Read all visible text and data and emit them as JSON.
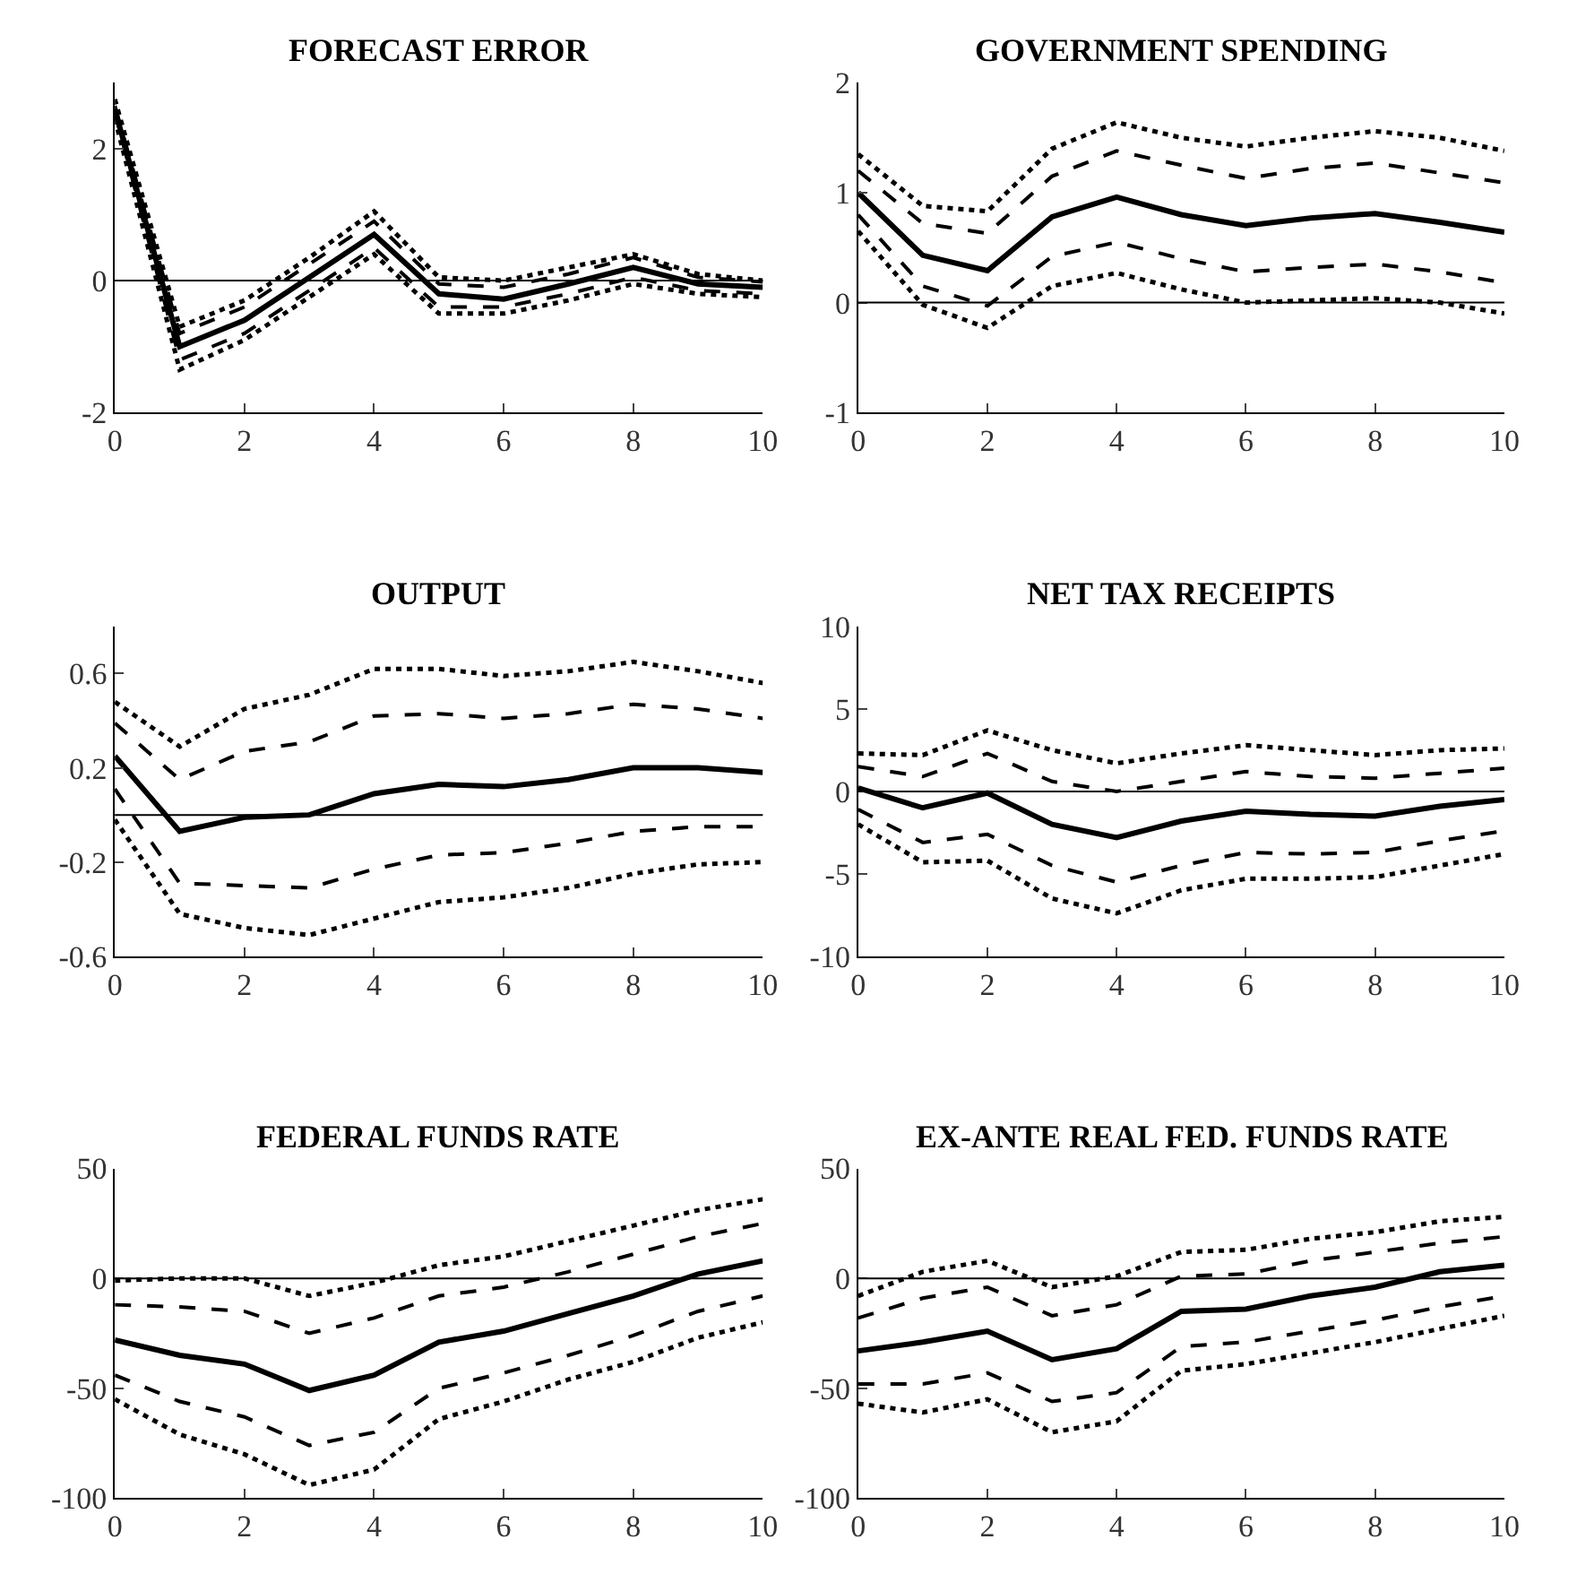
{
  "chart_data": [
    {
      "type": "line",
      "title": "FORECAST ERROR",
      "x": [
        0,
        1,
        2,
        3,
        4,
        5,
        6,
        7,
        8,
        9,
        10
      ],
      "xlim": [
        0,
        10
      ],
      "xticks": [
        0,
        2,
        4,
        6,
        8,
        10
      ],
      "ylim": [
        -2,
        3
      ],
      "yticks": [
        -2,
        0,
        2
      ],
      "ref_lines": [
        {
          "axis": "y",
          "value": 0
        }
      ],
      "series": [
        {
          "color": "#000000",
          "line_style": "dotted",
          "values": [
            2.75,
            -0.7,
            -0.3,
            0.35,
            1.05,
            0.05,
            0.0,
            0.2,
            0.4,
            0.1,
            0.0
          ]
        },
        {
          "color": "#000000",
          "line_style": "dashed",
          "values": [
            2.65,
            -0.8,
            -0.4,
            0.25,
            0.9,
            -0.05,
            -0.1,
            0.1,
            0.35,
            0.05,
            -0.02
          ]
        },
        {
          "color": "#000000",
          "line_style": "solid",
          "values": [
            2.6,
            -1.0,
            -0.6,
            0.05,
            0.7,
            -0.2,
            -0.28,
            -0.05,
            0.2,
            -0.05,
            -0.1
          ]
        },
        {
          "color": "#000000",
          "line_style": "dashed",
          "values": [
            2.55,
            -1.2,
            -0.8,
            -0.15,
            0.5,
            -0.4,
            -0.4,
            -0.2,
            0.05,
            -0.15,
            -0.2
          ]
        },
        {
          "color": "#000000",
          "line_style": "dotted",
          "values": [
            2.45,
            -1.35,
            -0.9,
            -0.25,
            0.4,
            -0.5,
            -0.5,
            -0.3,
            -0.05,
            -0.2,
            -0.25
          ]
        }
      ]
    },
    {
      "type": "line",
      "title": "GOVERNMENT SPENDING",
      "x": [
        0,
        1,
        2,
        3,
        4,
        5,
        6,
        7,
        8,
        9,
        10
      ],
      "xlim": [
        0,
        10
      ],
      "xticks": [
        0,
        2,
        4,
        6,
        8,
        10
      ],
      "ylim": [
        -1,
        2
      ],
      "yticks": [
        -1,
        0,
        1,
        2
      ],
      "ref_lines": [
        {
          "axis": "y",
          "value": 0
        }
      ],
      "series": [
        {
          "color": "#000000",
          "line_style": "dotted",
          "values": [
            1.35,
            0.88,
            0.83,
            1.4,
            1.64,
            1.5,
            1.42,
            1.5,
            1.56,
            1.5,
            1.38
          ]
        },
        {
          "color": "#000000",
          "line_style": "dashed",
          "values": [
            1.2,
            0.72,
            0.63,
            1.15,
            1.38,
            1.25,
            1.13,
            1.22,
            1.27,
            1.18,
            1.09
          ]
        },
        {
          "color": "#000000",
          "line_style": "solid",
          "values": [
            1.0,
            0.43,
            0.29,
            0.78,
            0.96,
            0.8,
            0.7,
            0.77,
            0.81,
            0.73,
            0.64
          ]
        },
        {
          "color": "#000000",
          "line_style": "dashed",
          "values": [
            0.8,
            0.15,
            -0.03,
            0.42,
            0.55,
            0.4,
            0.28,
            0.32,
            0.35,
            0.28,
            0.18
          ]
        },
        {
          "color": "#000000",
          "line_style": "dotted",
          "values": [
            0.65,
            -0.02,
            -0.23,
            0.15,
            0.27,
            0.12,
            0.0,
            0.02,
            0.04,
            0.0,
            -0.1
          ]
        }
      ]
    },
    {
      "type": "line",
      "title": "OUTPUT",
      "x": [
        0,
        1,
        2,
        3,
        4,
        5,
        6,
        7,
        8,
        9,
        10
      ],
      "xlim": [
        0,
        10
      ],
      "xticks": [
        0,
        2,
        4,
        6,
        8,
        10
      ],
      "ylim": [
        -0.6,
        0.8
      ],
      "yticks": [
        -0.6,
        -0.2,
        0.2,
        0.6
      ],
      "ref_lines": [
        {
          "axis": "y",
          "value": 0
        }
      ],
      "series": [
        {
          "color": "#000000",
          "line_style": "dotted",
          "values": [
            0.48,
            0.29,
            0.45,
            0.51,
            0.62,
            0.62,
            0.59,
            0.61,
            0.65,
            0.61,
            0.56
          ]
        },
        {
          "color": "#000000",
          "line_style": "dashed",
          "values": [
            0.39,
            0.15,
            0.27,
            0.31,
            0.42,
            0.43,
            0.41,
            0.43,
            0.47,
            0.45,
            0.41
          ]
        },
        {
          "color": "#000000",
          "line_style": "solid",
          "values": [
            0.25,
            -0.07,
            -0.01,
            0.0,
            0.09,
            0.13,
            0.12,
            0.15,
            0.2,
            0.2,
            0.18
          ]
        },
        {
          "color": "#000000",
          "line_style": "dashed",
          "values": [
            0.11,
            -0.29,
            -0.3,
            -0.31,
            -0.23,
            -0.17,
            -0.16,
            -0.12,
            -0.07,
            -0.05,
            -0.05
          ]
        },
        {
          "color": "#000000",
          "line_style": "dotted",
          "values": [
            -0.02,
            -0.42,
            -0.48,
            -0.51,
            -0.44,
            -0.37,
            -0.35,
            -0.31,
            -0.25,
            -0.21,
            -0.2
          ]
        }
      ]
    },
    {
      "type": "line",
      "title": "NET TAX RECEIPTS",
      "x": [
        0,
        1,
        2,
        3,
        4,
        5,
        6,
        7,
        8,
        9,
        10
      ],
      "xlim": [
        0,
        10
      ],
      "xticks": [
        0,
        2,
        4,
        6,
        8,
        10
      ],
      "ylim": [
        -10,
        10
      ],
      "yticks": [
        -10,
        -5,
        0,
        5,
        10
      ],
      "ref_lines": [
        {
          "axis": "y",
          "value": 0
        }
      ],
      "series": [
        {
          "color": "#000000",
          "line_style": "dotted",
          "values": [
            2.3,
            2.2,
            3.7,
            2.5,
            1.7,
            2.3,
            2.8,
            2.5,
            2.2,
            2.5,
            2.6
          ]
        },
        {
          "color": "#000000",
          "line_style": "dashed",
          "values": [
            1.5,
            0.9,
            2.3,
            0.6,
            0.0,
            0.6,
            1.2,
            0.9,
            0.8,
            1.1,
            1.4
          ]
        },
        {
          "color": "#000000",
          "line_style": "solid",
          "values": [
            0.2,
            -1.0,
            -0.1,
            -2.0,
            -2.8,
            -1.8,
            -1.2,
            -1.4,
            -1.5,
            -0.9,
            -0.5
          ]
        },
        {
          "color": "#000000",
          "line_style": "dashed",
          "values": [
            -1.1,
            -3.1,
            -2.6,
            -4.5,
            -5.5,
            -4.5,
            -3.7,
            -3.8,
            -3.7,
            -3.0,
            -2.4
          ]
        },
        {
          "color": "#000000",
          "line_style": "dotted",
          "values": [
            -2.0,
            -4.3,
            -4.2,
            -6.5,
            -7.4,
            -6.0,
            -5.3,
            -5.3,
            -5.2,
            -4.5,
            -3.8
          ]
        }
      ]
    },
    {
      "type": "line",
      "title": "FEDERAL FUNDS RATE",
      "x": [
        0,
        1,
        2,
        3,
        4,
        5,
        6,
        7,
        8,
        9,
        10
      ],
      "xlim": [
        0,
        10
      ],
      "xticks": [
        0,
        2,
        4,
        6,
        8,
        10
      ],
      "ylim": [
        -100,
        50
      ],
      "yticks": [
        -100,
        -50,
        0,
        50
      ],
      "ref_lines": [
        {
          "axis": "y",
          "value": 0
        }
      ],
      "series": [
        {
          "color": "#000000",
          "line_style": "dotted",
          "values": [
            -1,
            0,
            0,
            -8,
            -2,
            6,
            10,
            17,
            24,
            31,
            36
          ]
        },
        {
          "color": "#000000",
          "line_style": "dashed",
          "values": [
            -12,
            -13,
            -15,
            -25,
            -18,
            -8,
            -4,
            3,
            11,
            19,
            25
          ]
        },
        {
          "color": "#000000",
          "line_style": "solid",
          "values": [
            -28,
            -35,
            -39,
            -51,
            -44,
            -29,
            -24,
            -16,
            -8,
            2,
            8
          ]
        },
        {
          "color": "#000000",
          "line_style": "dashed",
          "values": [
            -44,
            -56,
            -63,
            -76,
            -70,
            -50,
            -43,
            -35,
            -26,
            -15,
            -8
          ]
        },
        {
          "color": "#000000",
          "line_style": "dotted",
          "values": [
            -55,
            -71,
            -80,
            -94,
            -87,
            -64,
            -56,
            -46,
            -38,
            -27,
            -20
          ]
        }
      ]
    },
    {
      "type": "line",
      "title": "EX-ANTE REAL FED. FUNDS RATE",
      "x": [
        0,
        1,
        2,
        3,
        4,
        5,
        6,
        7,
        8,
        9,
        10
      ],
      "xlim": [
        0,
        10
      ],
      "xticks": [
        0,
        2,
        4,
        6,
        8,
        10
      ],
      "ylim": [
        -100,
        50
      ],
      "yticks": [
        -100,
        -50,
        0,
        50
      ],
      "ref_lines": [
        {
          "axis": "y",
          "value": 0
        }
      ],
      "series": [
        {
          "color": "#000000",
          "line_style": "dotted",
          "values": [
            -8,
            3,
            8,
            -4,
            1,
            12,
            13,
            18,
            21,
            26,
            28
          ]
        },
        {
          "color": "#000000",
          "line_style": "dashed",
          "values": [
            -18,
            -9,
            -4,
            -17,
            -12,
            1,
            2,
            8,
            12,
            16,
            19
          ]
        },
        {
          "color": "#000000",
          "line_style": "solid",
          "values": [
            -33,
            -29,
            -24,
            -37,
            -32,
            -15,
            -14,
            -8,
            -4,
            3,
            6
          ]
        },
        {
          "color": "#000000",
          "line_style": "dashed",
          "values": [
            -48,
            -48,
            -43,
            -56,
            -52,
            -31,
            -29,
            -24,
            -19,
            -13,
            -8
          ]
        },
        {
          "color": "#000000",
          "line_style": "dotted",
          "values": [
            -57,
            -61,
            -55,
            -70,
            -65,
            -42,
            -39,
            -34,
            -29,
            -23,
            -17
          ]
        }
      ]
    }
  ]
}
